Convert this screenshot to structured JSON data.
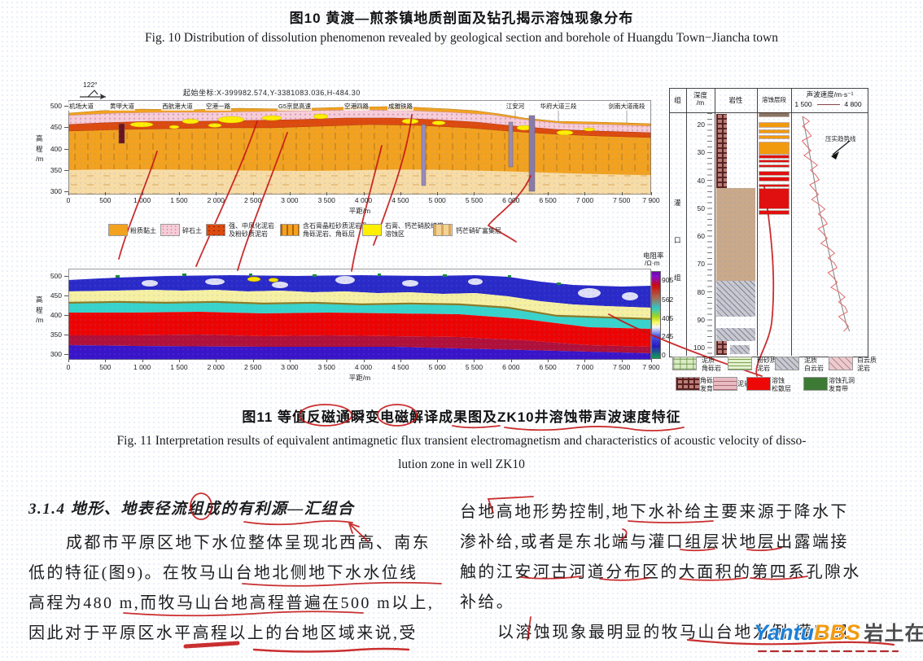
{
  "fig10": {
    "zh": "图10  黄渡—煎茶镇地质剖面及钻孔揭示溶蚀现象分布",
    "en": "Fig. 10   Distribution of dissolution phenomenon revealed by geological section and borehole of Huangdu Town−Jiancha town"
  },
  "fig11": {
    "zh": "图11  等值反磁通瞬变电磁解译成果图及ZK10井溶蚀带声波速度特征",
    "en_line1": "Fig. 11   Interpretation results of equivalent antimagnetic flux transient electromagnetism and characteristics of acoustic velocity of disso-",
    "en_line2": "lution zone in well ZK10"
  },
  "axes": {
    "ylabel": "高程/m",
    "xlabel": "平距/m",
    "xticks": [
      "0",
      "500",
      "1 000",
      "1 500",
      "2 000",
      "2 500",
      "3 000",
      "3 500",
      "4 000",
      "4 500",
      "5 000",
      "5 500",
      "6 000",
      "6 500",
      "7 000",
      "7 500",
      "7 900"
    ]
  },
  "section1": {
    "north_angle": "122°",
    "origin_coords": "起始坐标:X-399982.574,Y-3381083.036,H-484.30",
    "roads": [
      "机场大道",
      "黄甲大道",
      "西航港大道",
      "空港一路",
      "G5京昆高速",
      "空港四路",
      "成雅铁路",
      "江安河",
      "华府大道三段",
      "剑南大道南段"
    ],
    "yticks": [
      "500",
      "450",
      "400",
      "350",
      "300"
    ],
    "legend": [
      {
        "label": "粉质黏土",
        "color": "#f2a21f"
      },
      {
        "label": "碎石土",
        "color": "#f6cdd8"
      },
      {
        "label": "强、中风化泥岩\n及粉砂质泥岩",
        "color": "#dd4a0e"
      },
      {
        "label": "含石膏晶粒砂质泥岩及\n角砾泥岩、角砾层",
        "color": "#f2a21f"
      },
      {
        "label": "石膏、钙芒硝胶结岩\n溶蚀区",
        "color": "#ffef00"
      },
      {
        "label": "钙芒硝矿富集层",
        "color": "#f3d292"
      }
    ]
  },
  "section2": {
    "yticks": [
      "500",
      "450",
      "400",
      "350",
      "300"
    ],
    "colorbar": {
      "title_line1": "电阻率",
      "title_line2": "/Ω·m",
      "ticks": [
        "905",
        "562",
        "405",
        "245",
        "0"
      ]
    }
  },
  "borehole": {
    "headers": {
      "group": "组",
      "depth": "深度",
      "depth_unit": "/m",
      "lithology": "岩性",
      "dissolution": "溶蚀层段",
      "velocity": "声波速度/m·s⁻¹"
    },
    "velocity_min": "1 500",
    "velocity_max": "4 800",
    "formation": [
      "灌",
      "口",
      "组"
    ],
    "depth_labels": [
      "20",
      "30",
      "40",
      "50",
      "60",
      "70",
      "80",
      "90",
      "100"
    ],
    "trend_label": "压实趋势线",
    "legend": [
      {
        "label": "泥质\n角砾岩",
        "swatch": "green-breccia"
      },
      {
        "label": "粉砂质\n泥岩",
        "swatch": "green-lines"
      },
      {
        "label": "泥质\n白云岩",
        "swatch": "gray-dolomite"
      },
      {
        "label": "白云质\n泥岩",
        "swatch": "pink-dolomitic-mudstone"
      },
      {
        "label": "角砾\n发育",
        "swatch": "dark-breccia"
      },
      {
        "label": "泥岩",
        "swatch": "pink-mudstone"
      },
      {
        "label": "溶蚀\n松散层",
        "swatch": "red-solid"
      },
      {
        "label": "溶蚀孔洞\n发育带",
        "swatch": "green-solid"
      }
    ]
  },
  "body": {
    "heading": "3.1.4  地形、地表径流组成的有利源—汇组合",
    "left_lines": [
      "成都市平原区地下水位整体呈现北西高、南东",
      "低的特征(图9)。在牧马山台地北侧地下水水位线",
      "高程为480 m,而牧马山台地高程普遍在500 m以上,",
      "因此对于平原区水平高程以上的台地区域来说,受"
    ],
    "right_lines": [
      "台地高地形势控制,地下水补给主要来源于降水下",
      "渗补给,或者是东北端与灌口组层状地层出露端接",
      "触的江安河古河道分布区的大面积的第四系孔隙水",
      "补给。",
      "以溶蚀现象最明显的牧马山台地为例,灌口组"
    ]
  },
  "watermark": {
    "part1": "Yantu",
    "part2": "BBS",
    "part3": "岩土在线",
    "color1": "#1b7fd6",
    "color2": "#f59b0d"
  },
  "chart_data": [
    {
      "type": "area",
      "title": "黄渡—煎茶镇地质剖面(图10)",
      "xlabel": "平距/m",
      "ylabel": "高程/m",
      "xlim": [
        0,
        7900
      ],
      "ylim": [
        300,
        500
      ],
      "layers": [
        "粉质黏土",
        "碎石土",
        "强、中风化泥岩及粉砂质泥岩",
        "含石膏晶粒砂质泥岩及角砾泥岩、角砾层",
        "石膏、钙芒硝胶结岩溶蚀区",
        "钙芒硝矿富集层"
      ],
      "surface_elevation_m": {
        "left": 497,
        "center": 500,
        "right": 480
      }
    },
    {
      "type": "heatmap",
      "title": "等值反磁通瞬变电磁解译成果图(图11)",
      "xlabel": "平距/m",
      "ylabel": "高程/m",
      "xlim": [
        0,
        7900
      ],
      "ylim": [
        300,
        500
      ],
      "colorbar": {
        "label": "电阻率/Ω·m",
        "ticks": [
          905,
          562,
          405,
          245,
          0
        ]
      }
    },
    {
      "type": "line",
      "title": "ZK10井声波速度测井",
      "xlabel": "声波速度/m·s⁻¹",
      "xlim": [
        1500,
        4800
      ],
      "ylabel": "深度/m",
      "ylim": [
        100,
        14
      ],
      "trend_annotation": "压实趋势线",
      "dissolution_zones": [
        {
          "from_m": 16,
          "to_m": 17,
          "level": "weak"
        },
        {
          "from_m": 19.5,
          "to_m": 21,
          "level": "moderate"
        },
        {
          "from_m": 22,
          "to_m": 23,
          "level": "moderate"
        },
        {
          "from_m": 24,
          "to_m": 25,
          "level": "moderate"
        },
        {
          "from_m": 26.5,
          "to_m": 30.5,
          "level": "moderate"
        },
        {
          "from_m": 31,
          "to_m": 32,
          "level": "strong"
        },
        {
          "from_m": 32.8,
          "to_m": 33.6,
          "level": "strong"
        },
        {
          "from_m": 34.5,
          "to_m": 35.3,
          "level": "strong"
        },
        {
          "from_m": 37,
          "to_m": 38.2,
          "level": "strong"
        },
        {
          "from_m": 39,
          "to_m": 40.2,
          "level": "strong"
        },
        {
          "from_m": 41.5,
          "to_m": 42.2,
          "level": "strong"
        },
        {
          "from_m": 43,
          "to_m": 50,
          "level": "strong"
        },
        {
          "from_m": 51,
          "to_m": 52,
          "level": "strong"
        }
      ]
    }
  ]
}
